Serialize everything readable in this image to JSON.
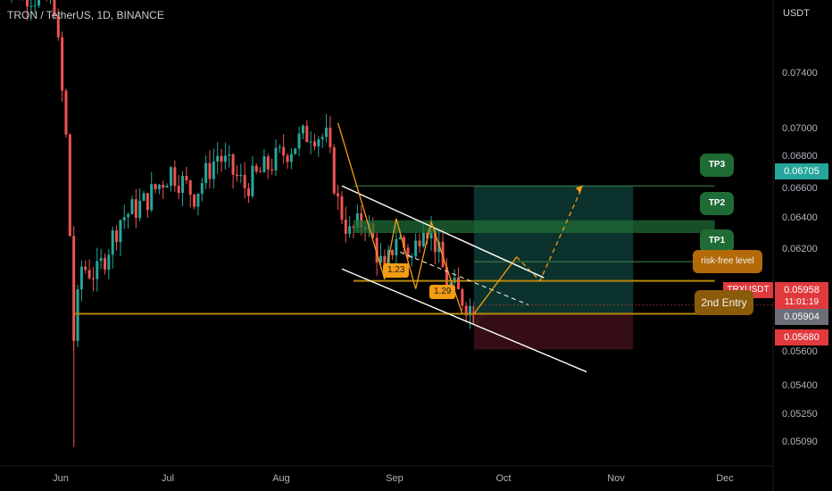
{
  "header": {
    "title": "TRON / TetherUS, 1D, BINANCE",
    "currency_label": "USDT"
  },
  "price_axis": {
    "ticks": [
      "0.07400",
      "0.07000",
      "0.06800",
      "0.06600",
      "0.06400",
      "0.06200",
      "0.05600",
      "0.05400",
      "0.05250",
      "0.05090"
    ]
  },
  "time_axis": {
    "ticks": [
      "Jun",
      "Jul",
      "Aug",
      "Sep",
      "Oct",
      "Nov",
      "Dec"
    ]
  },
  "price_tags": {
    "tp3_price": "0.06705",
    "symbol": "TRXUSDT",
    "last_price": "0.05958",
    "countdown": "11:01:19",
    "entry_price": "0.05904",
    "stop_price": "0.05680"
  },
  "annotations": {
    "tp3": "TP3",
    "tp2": "TP2",
    "tp1": "TP1",
    "risk_free": "risk-free level",
    "second_entry": "2nd Entry",
    "ratio_1": "1.23",
    "ratio_2": "1.29"
  },
  "colors": {
    "background": "#000000",
    "bull_candle": "#26a69a",
    "bear_candle": "#ef5350",
    "trend_line": "#ffffff",
    "level_line": "#b8860b",
    "projection": "#f39c12",
    "tp_box": "#1f6b35",
    "stop_tag": "#e03a3e",
    "target_tag": "#26a69a"
  },
  "chart_data": {
    "type": "candlestick",
    "symbol": "TRXUSDT",
    "interval": "1D",
    "exchange": "BINANCE",
    "x_start": "2022-05-25",
    "x_end": "2022-12-10",
    "ylim": [
      0.0505,
      0.079
    ],
    "close_path": [
      [
        "2022-05-25",
        0.081
      ],
      [
        "2022-05-28",
        0.0795
      ],
      [
        "2022-06-02",
        0.079
      ],
      [
        "2022-06-08",
        0.0785
      ],
      [
        "2022-06-11",
        0.07
      ],
      [
        "2022-06-12",
        0.064
      ],
      [
        "2022-06-13",
        0.0575
      ],
      [
        "2022-06-15",
        0.062
      ],
      [
        "2022-06-19",
        0.0615
      ],
      [
        "2022-06-25",
        0.065
      ],
      [
        "2022-07-01",
        0.066
      ],
      [
        "2022-07-08",
        0.068
      ],
      [
        "2022-07-14",
        0.0665
      ],
      [
        "2022-07-20",
        0.069
      ],
      [
        "2022-07-27",
        0.067
      ],
      [
        "2022-08-03",
        0.0685
      ],
      [
        "2022-08-08",
        0.0695
      ],
      [
        "2022-08-13",
        0.0705
      ],
      [
        "2022-08-17",
        0.07
      ],
      [
        "2022-08-20",
        0.066
      ],
      [
        "2022-08-23",
        0.064
      ],
      [
        "2022-08-27",
        0.065
      ],
      [
        "2022-09-01",
        0.0615
      ],
      [
        "2022-09-04",
        0.064
      ],
      [
        "2022-09-08",
        0.0625
      ],
      [
        "2022-09-11",
        0.065
      ],
      [
        "2022-09-14",
        0.0635
      ],
      [
        "2022-09-17",
        0.061
      ],
      [
        "2022-09-21",
        0.06
      ],
      [
        "2022-09-24",
        0.0592
      ],
      [
        "2022-09-26",
        0.0596
      ]
    ],
    "levels": [
      {
        "label": "TP3",
        "price": 0.06705
      },
      {
        "label": "TP2",
        "price": 0.0645
      },
      {
        "label": "TP1",
        "price": 0.0623
      },
      {
        "label": "risk-free level",
        "price": 0.0611
      },
      {
        "label": "2nd Entry",
        "price": 0.05904
      },
      {
        "label": "stop",
        "price": 0.0568
      }
    ],
    "channel": {
      "upper": [
        [
          "2022-08-21",
          0.06705
        ],
        [
          "2022-10-12",
          0.0613
        ]
      ],
      "lower": [
        [
          "2022-08-21",
          0.06185
        ],
        [
          "2022-10-23",
          0.0554
        ]
      ]
    },
    "fib_labels": [
      {
        "text": "1.23",
        "date": "2022-09-01",
        "price": 0.0609
      },
      {
        "text": "1.29",
        "date": "2022-09-19",
        "price": 0.05955
      }
    ],
    "projection_path": [
      [
        "2022-09-24",
        0.05904
      ],
      [
        "2022-10-05",
        0.0626
      ],
      [
        "2022-10-11",
        0.0611
      ],
      [
        "2022-10-22",
        0.06705
      ]
    ],
    "last_price": 0.05958
  }
}
